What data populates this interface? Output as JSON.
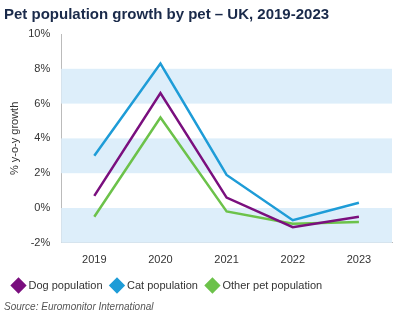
{
  "chart_data": {
    "type": "line",
    "title": "Pet population growth by pet – UK, 2019-2023",
    "y_label": "% y-o-y growth",
    "source": "Source: Euromonitor International",
    "categories": [
      "2019",
      "2020",
      "2021",
      "2022",
      "2023"
    ],
    "series": [
      {
        "name": "Dog population",
        "color": "#7a0f7e",
        "values": [
          0.7,
          6.6,
          0.6,
          -1.1,
          -0.5
        ]
      },
      {
        "name": "Cat population",
        "color": "#1e9cd7",
        "values": [
          3.0,
          8.3,
          1.9,
          -0.7,
          0.3
        ]
      },
      {
        "name": "Other pet population",
        "color": "#6cc24a",
        "values": [
          -0.5,
          5.2,
          -0.2,
          -0.9,
          -0.8
        ]
      }
    ],
    "ylim": [
      -2,
      10
    ],
    "yticks": [
      {
        "value": -2,
        "label": "-2%"
      },
      {
        "value": 0,
        "label": "0%"
      },
      {
        "value": 2,
        "label": "2%"
      },
      {
        "value": 4,
        "label": "4%"
      },
      {
        "value": 6,
        "label": "6%"
      },
      {
        "value": 8,
        "label": "8%"
      },
      {
        "value": 10,
        "label": "10%"
      }
    ],
    "grid": true,
    "legend": "bottom"
  }
}
